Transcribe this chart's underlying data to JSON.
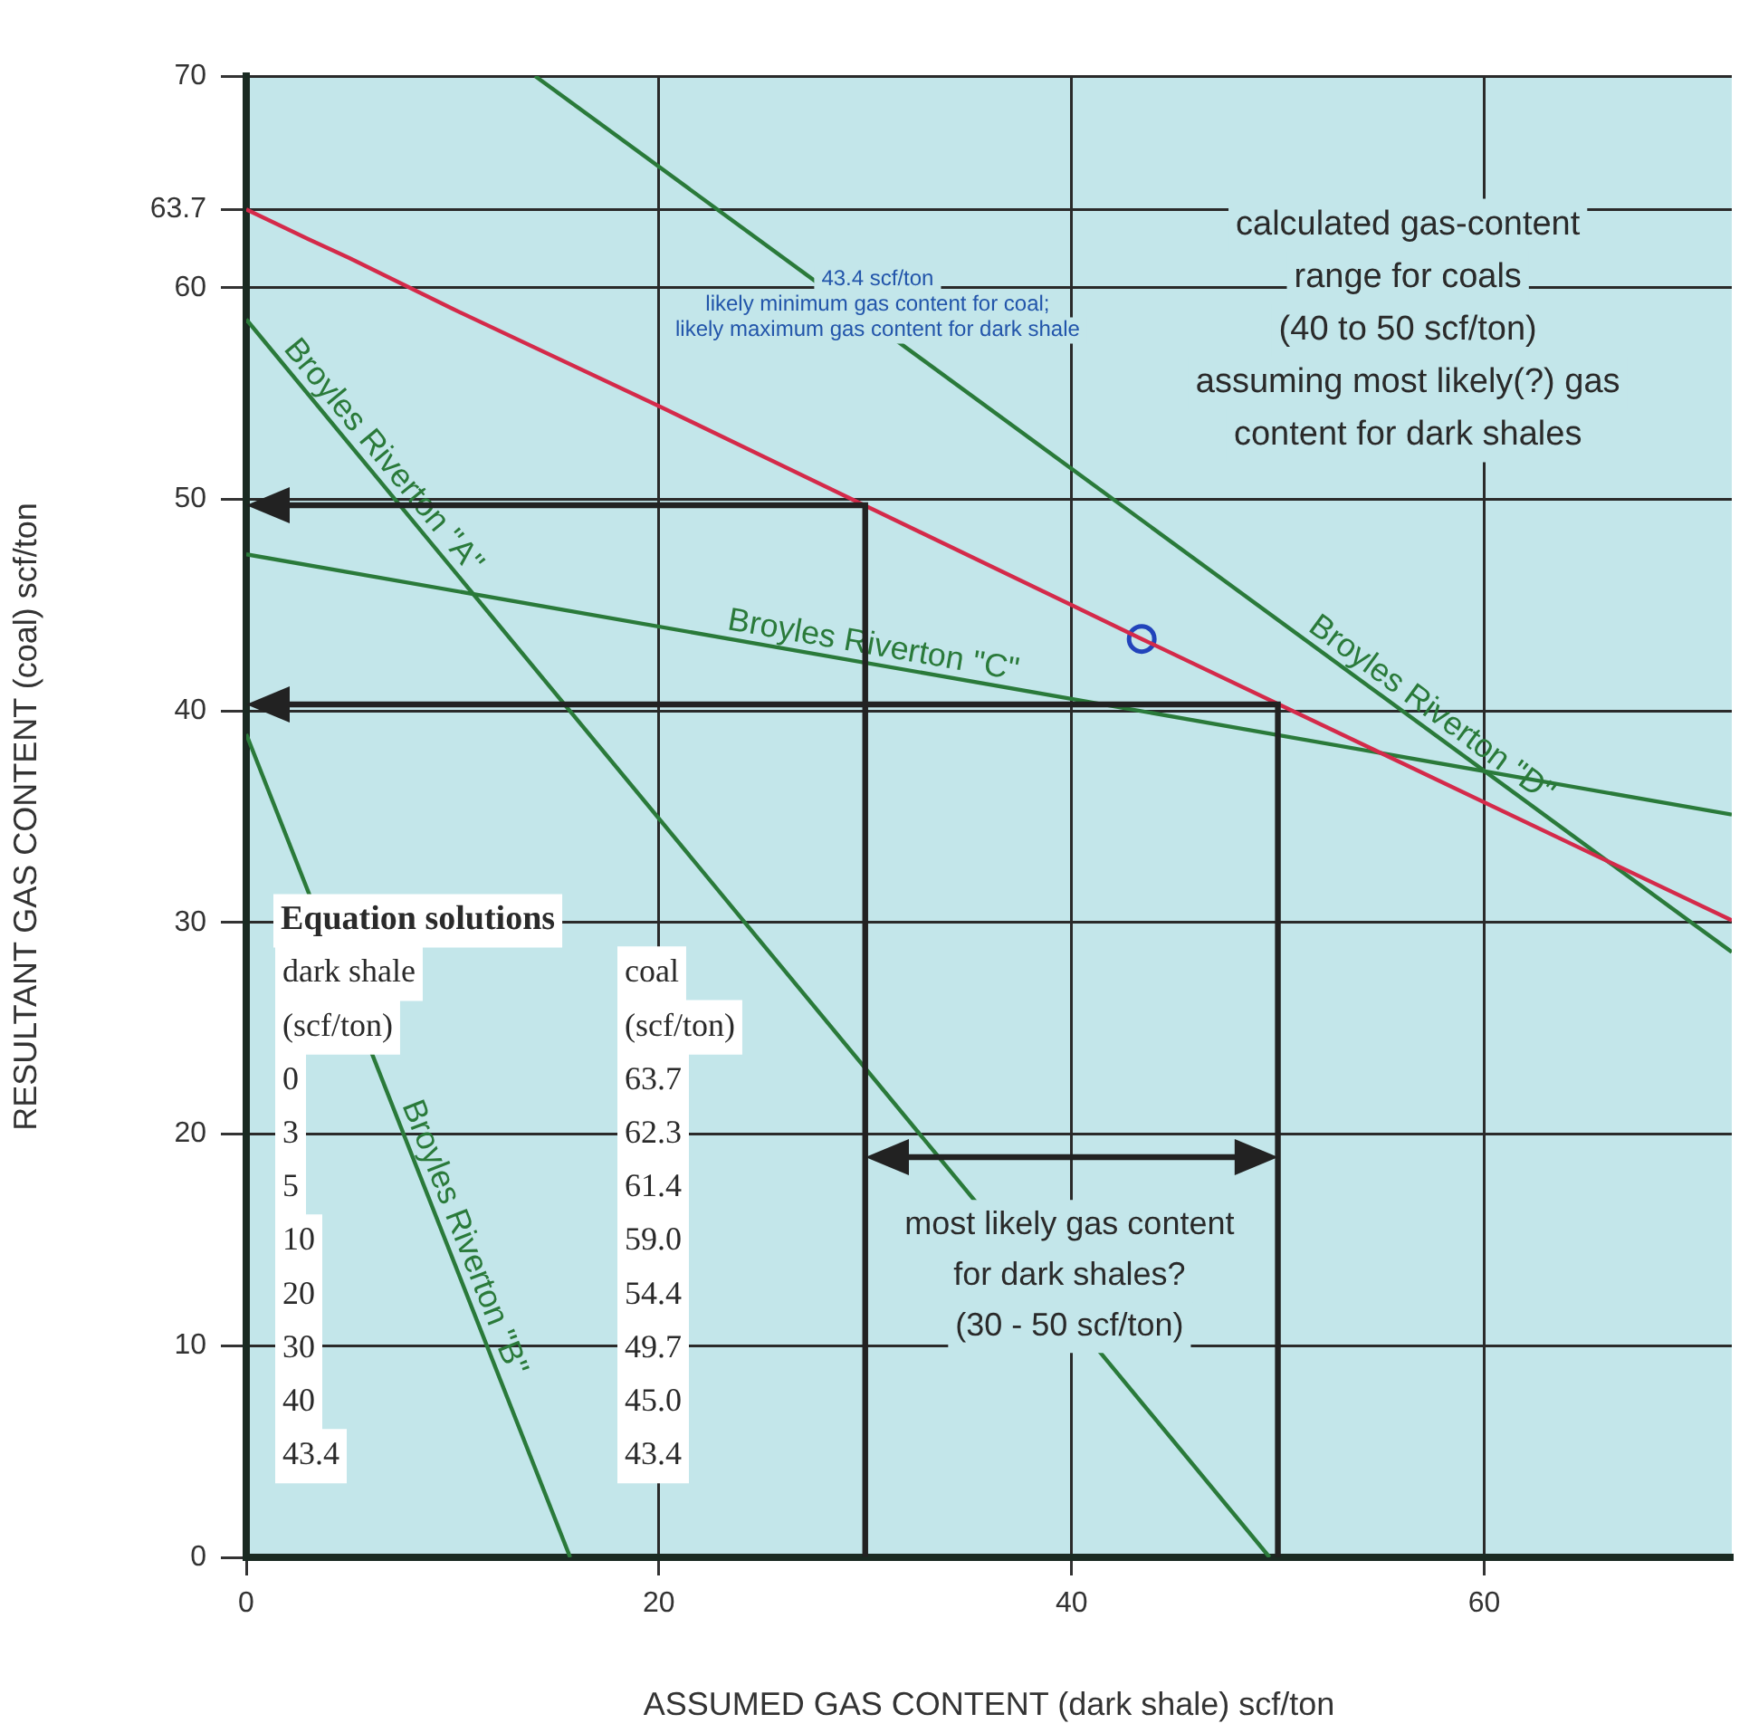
{
  "chart_data": {
    "type": "line",
    "xlabel": "ASSUMED GAS CONTENT (dark shale) scf/ton",
    "ylabel": "RESULTANT GAS CONTENT (coal) scf/ton",
    "xlim": [
      0,
      72
    ],
    "xticks": [
      0,
      20,
      40,
      60
    ],
    "ylim": [
      0,
      70
    ],
    "yticks": [
      0,
      10,
      20,
      30,
      40,
      50,
      60,
      63.7,
      70
    ],
    "grid": true,
    "series": [
      {
        "color": "#d42a4a",
        "x": [
          0,
          3,
          5,
          10,
          20,
          30,
          40,
          43.4,
          72
        ],
        "values": [
          63.7,
          62.3,
          61.4,
          59.0,
          54.4,
          49.7,
          45.0,
          43.4,
          30.1
        ]
      },
      {
        "name": "Broyles Riverton \"A\"",
        "color": "#2a7a3a",
        "x": [
          0,
          49.6
        ],
        "values": [
          58.5,
          0
        ]
      },
      {
        "name": "Broyles Riverton \"B\"",
        "color": "#2a7a3a",
        "x": [
          0,
          15.7
        ],
        "values": [
          38.9,
          0
        ]
      },
      {
        "name": "Broyles Riverton \"C\"",
        "color": "#2a7a3a",
        "x": [
          0,
          72
        ],
        "values": [
          47.4,
          35.1
        ]
      },
      {
        "name": "Broyles Riverton \"D\"",
        "color": "#2a7a3a",
        "x": [
          14,
          72
        ],
        "values": [
          70,
          28.6
        ]
      },
      {
        "type": "scatter",
        "marker": "circle",
        "color": "#2244bb",
        "x": [
          43.4
        ],
        "values": [
          43.4
        ]
      }
    ],
    "annotations": [
      "43.4 scf/ton\nlikely minimum gas content for coal;\nlikely maximum gas content for dark shale",
      "calculated gas-content\nrange for coals\n(40 to 50 scf/ton)\nassuming most likely(?) gas\ncontent for dark shales",
      "most likely gas content\nfor dark shales?\n(30 - 50 scf/ton)",
      "Equation solutions",
      "dark shale\n(scf/ton)\n0\n3\n5\n10\n20\n30\n40\n43.4",
      "coal\n(scf/ton)\n63.7\n62.3\n61.4\n59.0\n54.4\n49.7\n45.0\n43.4"
    ]
  }
}
